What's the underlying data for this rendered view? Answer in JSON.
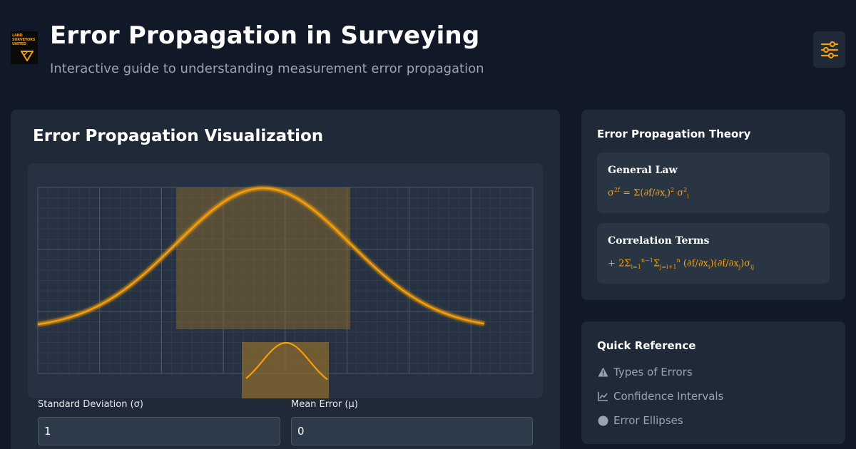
{
  "header": {
    "logo_lines": [
      "LAND",
      "SURVEYORS",
      "UNITED"
    ],
    "title": "Error Propagation in Surveying",
    "subtitle": "Interactive guide to understanding measurement error propagation",
    "settings_icon": "sliders-icon"
  },
  "visualization": {
    "title": "Error Propagation Visualization",
    "chart_data": {
      "type": "line",
      "title": "",
      "xlabel": "",
      "ylabel": "",
      "grid": true,
      "mean": 0,
      "std_dev": 1,
      "series": [
        {
          "curve": "normal-distribution",
          "color": "#f59e0b"
        }
      ],
      "highlight_band_sigma": [
        -1,
        1
      ],
      "inset": {
        "curve": "normal-distribution-peak",
        "color": "#f59e0b"
      }
    },
    "fields": [
      {
        "label": "Standard Deviation (σ)",
        "value": "1"
      },
      {
        "label": "Mean Error (μ)",
        "value": "0"
      }
    ]
  },
  "theory": {
    "title": "Error Propagation Theory",
    "general_law": {
      "title": "General Law",
      "formula_main": "σ²f = Σ(∂f/∂xᵢ)² σ²ᵢ"
    },
    "correlation": {
      "title": "Correlation Terms",
      "formula_main": "+ 2Σi=1n−1Σj=i+1n (∂f/∂xi)(∂f/∂xj)σij"
    }
  },
  "quick_reference": {
    "title": "Quick Reference",
    "items": [
      {
        "label": "Types of Errors",
        "icon": "warning-icon"
      },
      {
        "label": "Confidence Intervals",
        "icon": "line-chart-icon"
      },
      {
        "label": "Error Ellipses",
        "icon": "circle-icon"
      }
    ]
  },
  "colors": {
    "accent": "#f59e0b",
    "background": "#111827",
    "card": "#1f2937"
  }
}
